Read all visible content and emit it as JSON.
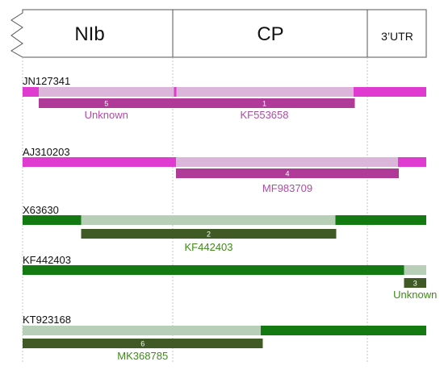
{
  "colors": {
    "magenta": "#e03bd0",
    "magenta_light": "#dcb6da",
    "magenta_recomb": "#b03a98",
    "magenta_text": "#b04aa6",
    "green": "#127a10",
    "green_light": "#b7cfb7",
    "green_recomb": "#3f5a25",
    "green_text": "#3f8a1a"
  },
  "genome_map": {
    "segments": [
      {
        "label": "NIb"
      },
      {
        "label": "CP"
      },
      {
        "label": "3’UTR"
      }
    ]
  },
  "tracks": [
    {
      "name": "JN127341",
      "colorset": "magenta",
      "bands": [
        {
          "from": 0.0,
          "to": 0.04,
          "shade": "dark"
        },
        {
          "from": 0.04,
          "to": 0.375,
          "shade": "light"
        },
        {
          "from": 0.375,
          "to": 0.381,
          "shade": "dark"
        },
        {
          "from": 0.381,
          "to": 0.82,
          "shade": "light"
        },
        {
          "from": 0.82,
          "to": 1.0,
          "shade": "dark"
        }
      ],
      "recombinants": [
        {
          "number": "5",
          "from": 0.04,
          "to": 0.375,
          "label": "Unknown"
        },
        {
          "number": "1",
          "from": 0.375,
          "to": 0.823,
          "label": "KF553658"
        }
      ]
    },
    {
      "name": "AJ310203",
      "colorset": "magenta",
      "bands": [
        {
          "from": 0.0,
          "to": 0.38,
          "shade": "dark"
        },
        {
          "from": 0.38,
          "to": 0.93,
          "shade": "light"
        },
        {
          "from": 0.93,
          "to": 1.0,
          "shade": "dark"
        }
      ],
      "recombinants": [
        {
          "number": "4",
          "from": 0.38,
          "to": 0.932,
          "label": "MF983709"
        }
      ]
    },
    {
      "name": "X63630",
      "colorset": "green",
      "bands": [
        {
          "from": 0.0,
          "to": 0.145,
          "shade": "dark"
        },
        {
          "from": 0.145,
          "to": 0.775,
          "shade": "light"
        },
        {
          "from": 0.775,
          "to": 1.0,
          "shade": "dark"
        }
      ],
      "recombinants": [
        {
          "number": "2",
          "from": 0.145,
          "to": 0.777,
          "label": "KF442403"
        }
      ]
    },
    {
      "name": "KF442403",
      "colorset": "green",
      "bands": [
        {
          "from": 0.0,
          "to": 0.945,
          "shade": "dark"
        },
        {
          "from": 0.945,
          "to": 1.0,
          "shade": "light"
        }
      ],
      "recombinants": [
        {
          "number": "3",
          "from": 0.945,
          "to": 1.0,
          "label": "Unknown"
        }
      ]
    },
    {
      "name": "KT923168",
      "colorset": "green",
      "bands": [
        {
          "from": 0.0,
          "to": 0.59,
          "shade": "light"
        },
        {
          "from": 0.59,
          "to": 1.0,
          "shade": "dark"
        }
      ],
      "recombinants": [
        {
          "number": "6",
          "from": 0.0,
          "to": 0.595,
          "label": "MK368785"
        }
      ]
    }
  ]
}
